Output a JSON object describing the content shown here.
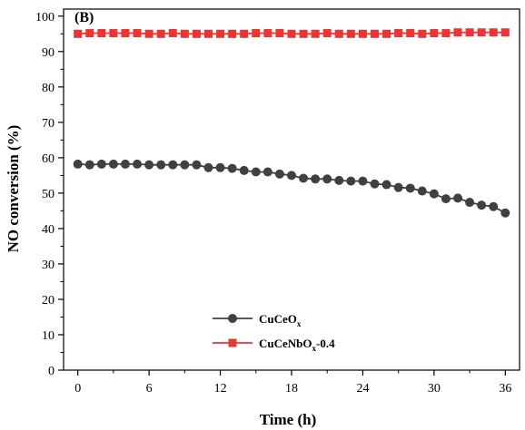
{
  "chart_data": {
    "type": "line",
    "panel_label": "(B)",
    "xlabel": "Time (h)",
    "ylabel": "NO conversion (%)",
    "xlim": [
      -1.2,
      37.2
    ],
    "ylim": [
      0,
      102
    ],
    "xticks": [
      0,
      6,
      12,
      18,
      24,
      30,
      36
    ],
    "yticks": [
      0,
      10,
      20,
      30,
      40,
      50,
      60,
      70,
      80,
      90,
      100
    ],
    "grid": false,
    "legend_position": "bottom-center",
    "series": [
      {
        "name": "CuCeO",
        "name_subscript": "x",
        "name_suffix": "",
        "color": "#404040",
        "marker": "circle",
        "x": [
          0,
          1,
          2,
          3,
          4,
          5,
          6,
          7,
          8,
          9,
          10,
          11,
          12,
          13,
          14,
          15,
          16,
          17,
          18,
          19,
          20,
          21,
          22,
          23,
          24,
          25,
          26,
          27,
          28,
          29,
          30,
          31,
          32,
          33,
          34,
          35,
          36
        ],
        "y": [
          58.2,
          58.0,
          58.2,
          58.2,
          58.2,
          58.2,
          58.0,
          58.0,
          58.0,
          58.0,
          58.0,
          57.2,
          57.2,
          57.0,
          56.4,
          56.0,
          56.0,
          55.4,
          55.0,
          54.2,
          54.0,
          54.0,
          53.6,
          53.4,
          53.4,
          52.6,
          52.4,
          51.6,
          51.4,
          50.6,
          49.8,
          48.4,
          48.6,
          47.4,
          46.6,
          46.2,
          44.4
        ]
      },
      {
        "name": "CuCeNbO",
        "name_subscript": "x",
        "name_suffix": "-0.4",
        "color": "#ee3333",
        "marker": "square",
        "x": [
          0,
          1,
          2,
          3,
          4,
          5,
          6,
          7,
          8,
          9,
          10,
          11,
          12,
          13,
          14,
          15,
          16,
          17,
          18,
          19,
          20,
          21,
          22,
          23,
          24,
          25,
          26,
          27,
          28,
          29,
          30,
          31,
          32,
          33,
          34,
          35,
          36
        ],
        "y": [
          95.0,
          95.2,
          95.2,
          95.2,
          95.2,
          95.2,
          95.0,
          95.0,
          95.2,
          95.0,
          95.0,
          95.0,
          95.0,
          95.0,
          95.0,
          95.2,
          95.2,
          95.2,
          95.0,
          95.0,
          95.0,
          95.2,
          95.0,
          95.0,
          95.0,
          95.0,
          95.0,
          95.2,
          95.2,
          95.0,
          95.2,
          95.2,
          95.4,
          95.4,
          95.4,
          95.4,
          95.4
        ]
      }
    ]
  }
}
